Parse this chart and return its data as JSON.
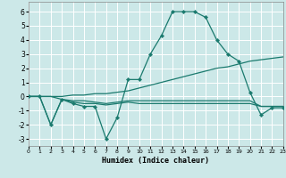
{
  "xlabel": "Humidex (Indice chaleur)",
  "xlim": [
    0,
    23
  ],
  "ylim": [
    -3.5,
    6.7
  ],
  "xticks": [
    0,
    1,
    2,
    3,
    4,
    5,
    6,
    7,
    8,
    9,
    10,
    11,
    12,
    13,
    14,
    15,
    16,
    17,
    18,
    19,
    20,
    21,
    22,
    23
  ],
  "yticks": [
    -3,
    -2,
    -1,
    0,
    1,
    2,
    3,
    4,
    5,
    6
  ],
  "bg_color": "#cce8e8",
  "line_color": "#1a7a6e",
  "grid_color": "#ffffff",
  "lines": [
    {
      "x": [
        0,
        1,
        2,
        3,
        4,
        5,
        6,
        7,
        8,
        9,
        10,
        11,
        12,
        13,
        14,
        15,
        16,
        17,
        18,
        19,
        20,
        21,
        22,
        23
      ],
      "y": [
        0,
        0,
        -2.0,
        -0.2,
        -0.5,
        -0.7,
        -0.7,
        -3.0,
        -1.5,
        1.2,
        1.2,
        3.0,
        4.3,
        6.0,
        6.0,
        6.0,
        5.6,
        4.0,
        3.0,
        2.5,
        0.3,
        -1.3,
        -0.8,
        -0.8
      ],
      "marker": true
    },
    {
      "x": [
        0,
        1,
        2,
        3,
        4,
        5,
        6,
        7,
        8,
        9,
        10,
        11,
        12,
        13,
        14,
        15,
        16,
        17,
        18,
        19,
        20,
        21,
        22,
        23
      ],
      "y": [
        0,
        0,
        0,
        -0.2,
        -0.4,
        -0.5,
        -0.5,
        -0.6,
        -0.5,
        -0.4,
        -0.5,
        -0.5,
        -0.5,
        -0.5,
        -0.5,
        -0.5,
        -0.5,
        -0.5,
        -0.5,
        -0.5,
        -0.5,
        -0.7,
        -0.7,
        -0.7
      ],
      "marker": false
    },
    {
      "x": [
        0,
        1,
        2,
        3,
        4,
        5,
        6,
        7,
        8,
        9,
        10,
        11,
        12,
        13,
        14,
        15,
        16,
        17,
        18,
        19,
        20,
        21,
        22,
        23
      ],
      "y": [
        0,
        0,
        0,
        0,
        0.1,
        0.1,
        0.2,
        0.2,
        0.3,
        0.4,
        0.6,
        0.8,
        1.0,
        1.2,
        1.4,
        1.6,
        1.8,
        2.0,
        2.1,
        2.3,
        2.5,
        2.6,
        2.7,
        2.8
      ],
      "marker": false
    },
    {
      "x": [
        0,
        1,
        2,
        3,
        4,
        5,
        6,
        7,
        8,
        9,
        10,
        11,
        12,
        13,
        14,
        15,
        16,
        17,
        18,
        19,
        20,
        21,
        22,
        23
      ],
      "y": [
        0,
        0,
        -2.0,
        -0.2,
        -0.3,
        -0.3,
        -0.4,
        -0.5,
        -0.4,
        -0.3,
        -0.3,
        -0.3,
        -0.3,
        -0.3,
        -0.3,
        -0.3,
        -0.3,
        -0.3,
        -0.3,
        -0.3,
        -0.3,
        -0.7,
        -0.7,
        -0.7
      ],
      "marker": false
    }
  ]
}
